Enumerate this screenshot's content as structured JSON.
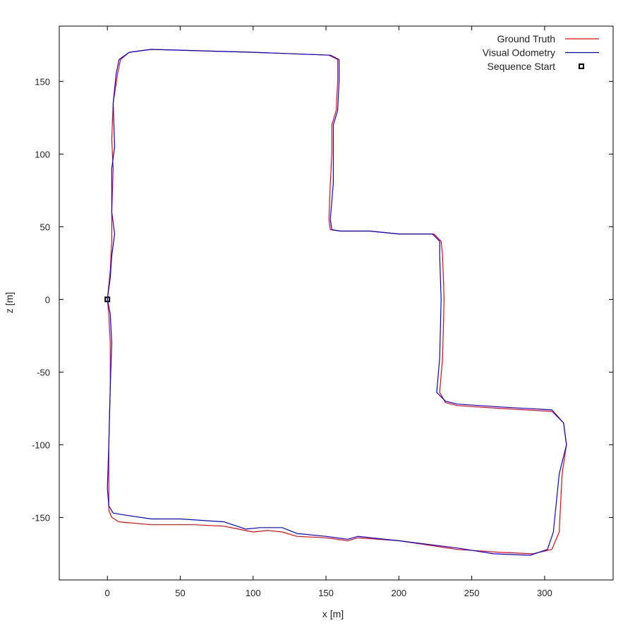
{
  "chart_data": {
    "type": "line",
    "xlabel": "x [m]",
    "ylabel": "z [m]",
    "xlim": [
      -33,
      347
    ],
    "ylim": [
      -193,
      188
    ],
    "x_ticks": [
      0,
      50,
      100,
      150,
      200,
      250,
      300
    ],
    "y_ticks": [
      -150,
      -100,
      -50,
      0,
      50,
      100,
      150
    ],
    "x_tick_labels": [
      "0",
      "50",
      "100",
      "150",
      "200",
      "250",
      "300"
    ],
    "y_tick_labels": [
      "-150",
      "-100",
      "-50",
      "0",
      "50",
      "100",
      "150"
    ],
    "grid": false,
    "legend_position": "top-right",
    "series": [
      {
        "name": "Ground Truth",
        "color": "#ff0000",
        "points": [
          [
            0,
            0
          ],
          [
            1,
            -10
          ],
          [
            2,
            -30
          ],
          [
            2,
            -60
          ],
          [
            1,
            -100
          ],
          [
            1,
            -130
          ],
          [
            1,
            -145
          ],
          [
            3,
            -150
          ],
          [
            8,
            -153
          ],
          [
            30,
            -155
          ],
          [
            60,
            -155
          ],
          [
            80,
            -156
          ],
          [
            90,
            -158
          ],
          [
            100,
            -160
          ],
          [
            110,
            -159
          ],
          [
            120,
            -160
          ],
          [
            130,
            -163
          ],
          [
            150,
            -164
          ],
          [
            165,
            -166
          ],
          [
            172,
            -164
          ],
          [
            200,
            -166
          ],
          [
            240,
            -172
          ],
          [
            270,
            -174
          ],
          [
            292,
            -175
          ],
          [
            305,
            -172
          ],
          [
            310,
            -160
          ],
          [
            312,
            -120
          ],
          [
            315,
            -100
          ],
          [
            313,
            -85
          ],
          [
            305,
            -77
          ],
          [
            270,
            -75
          ],
          [
            240,
            -73
          ],
          [
            232,
            -71
          ],
          [
            228,
            -64
          ],
          [
            230,
            -40
          ],
          [
            231,
            0
          ],
          [
            230,
            30
          ],
          [
            229,
            40
          ],
          [
            224,
            45
          ],
          [
            200,
            45
          ],
          [
            180,
            47
          ],
          [
            160,
            47
          ],
          [
            153,
            48
          ],
          [
            152,
            55
          ],
          [
            153,
            80
          ],
          [
            154,
            100
          ],
          [
            154,
            120
          ],
          [
            157,
            130
          ],
          [
            158,
            150
          ],
          [
            158,
            165
          ],
          [
            152,
            168
          ],
          [
            100,
            170
          ],
          [
            30,
            172
          ],
          [
            15,
            170
          ],
          [
            9,
            165
          ],
          [
            7,
            155
          ],
          [
            4,
            135
          ],
          [
            3,
            110
          ],
          [
            4,
            90
          ],
          [
            3,
            60
          ],
          [
            3,
            40
          ],
          [
            2,
            20
          ],
          [
            0,
            0
          ]
        ]
      },
      {
        "name": "Visual Odometry",
        "color": "#0000ff",
        "points": [
          [
            0,
            0
          ],
          [
            2,
            -10
          ],
          [
            3,
            -30
          ],
          [
            2,
            -60
          ],
          [
            1,
            -100
          ],
          [
            0,
            -130
          ],
          [
            1,
            -142
          ],
          [
            4,
            -147
          ],
          [
            10,
            -148
          ],
          [
            30,
            -151
          ],
          [
            50,
            -151
          ],
          [
            80,
            -153
          ],
          [
            95,
            -158
          ],
          [
            105,
            -157
          ],
          [
            120,
            -157
          ],
          [
            130,
            -161
          ],
          [
            150,
            -163
          ],
          [
            165,
            -165
          ],
          [
            172,
            -163
          ],
          [
            200,
            -166
          ],
          [
            240,
            -171
          ],
          [
            265,
            -175
          ],
          [
            290,
            -176
          ],
          [
            302,
            -172
          ],
          [
            306,
            -160
          ],
          [
            310,
            -120
          ],
          [
            315,
            -100
          ],
          [
            313,
            -85
          ],
          [
            305,
            -76
          ],
          [
            270,
            -74
          ],
          [
            240,
            -72
          ],
          [
            232,
            -70
          ],
          [
            226,
            -64
          ],
          [
            228,
            -40
          ],
          [
            229,
            0
          ],
          [
            228,
            30
          ],
          [
            228,
            40
          ],
          [
            223,
            45
          ],
          [
            200,
            45
          ],
          [
            180,
            47
          ],
          [
            160,
            47
          ],
          [
            154,
            48
          ],
          [
            153,
            55
          ],
          [
            155,
            80
          ],
          [
            155,
            100
          ],
          [
            155,
            120
          ],
          [
            158,
            130
          ],
          [
            159,
            150
          ],
          [
            159,
            165
          ],
          [
            153,
            168
          ],
          [
            100,
            170
          ],
          [
            30,
            172
          ],
          [
            15,
            170
          ],
          [
            8,
            165
          ],
          [
            6,
            155
          ],
          [
            4,
            135
          ],
          [
            5,
            105
          ],
          [
            3,
            90
          ],
          [
            3,
            60
          ],
          [
            5,
            45
          ],
          [
            3,
            30
          ],
          [
            2,
            15
          ],
          [
            0,
            0
          ]
        ]
      },
      {
        "name": "Sequence Start",
        "color": "#000000",
        "marker": "square",
        "points": [
          [
            0,
            0
          ]
        ]
      }
    ]
  }
}
